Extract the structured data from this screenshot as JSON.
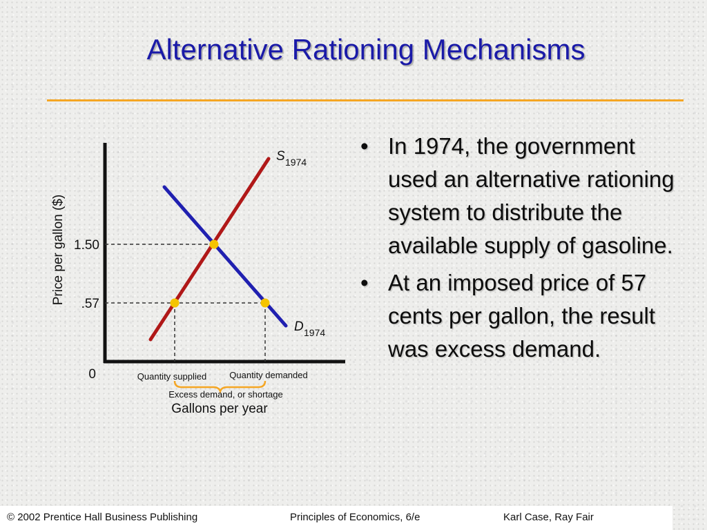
{
  "slide": {
    "title": "Alternative Rationing Mechanisms",
    "bullets": [
      "In 1974, the government used an alternative rationing system to distribute the available supply of gasoline.",
      "At an imposed price of 57 cents per gallon, the result was excess demand."
    ]
  },
  "footer": {
    "left": "© 2002 Prentice Hall Business Publishing",
    "center": "Principles of Economics, 6/e",
    "right": "Karl Case, Ray Fair"
  },
  "colors": {
    "title": "#1a1aa8",
    "rule": "#f5a623",
    "supply": "#b01818",
    "demand": "#2020b0",
    "point": "#f5c400"
  },
  "chart_data": {
    "type": "line",
    "ylabel": "Price per gallon ($)",
    "xlabel": "Gallons per year",
    "y_ticks": [
      "1.50",
      ".57"
    ],
    "origin_label": "0",
    "series": [
      {
        "name_main": "S",
        "name_sub": "1974"
      },
      {
        "name_main": "D",
        "name_sub": "1974"
      }
    ],
    "annotations": {
      "quantity_supplied": "Quantity supplied",
      "quantity_demanded": "Quantity demanded",
      "shortage": "Excess demand, or shortage"
    }
  }
}
